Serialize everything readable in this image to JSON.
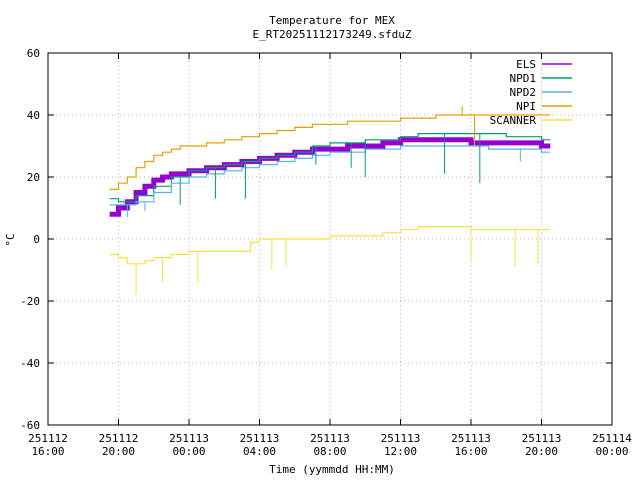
{
  "chart_data": {
    "type": "line",
    "title": "Temperature for MEX",
    "subtitle": "E_RT20251112173249.sfduZ",
    "xlabel": "Time (yymmdd HH:MM)",
    "ylabel": "°C",
    "ylim": [
      -60,
      60
    ],
    "yticks": [
      -60,
      -40,
      -20,
      0,
      20,
      40,
      60
    ],
    "xlim_hours": [
      0,
      32
    ],
    "xticks": [
      {
        "h": 0,
        "date": "251112",
        "time": "16:00"
      },
      {
        "h": 4,
        "date": "251112",
        "time": "20:00"
      },
      {
        "h": 8,
        "date": "251113",
        "time": "00:00"
      },
      {
        "h": 12,
        "date": "251113",
        "time": "04:00"
      },
      {
        "h": 16,
        "date": "251113",
        "time": "08:00"
      },
      {
        "h": 20,
        "date": "251113",
        "time": "12:00"
      },
      {
        "h": 24,
        "date": "251113",
        "time": "16:00"
      },
      {
        "h": 28,
        "date": "251113",
        "time": "20:00"
      },
      {
        "h": 32,
        "date": "251114",
        "time": "00:00"
      }
    ],
    "legend_position": "top-right",
    "series": [
      {
        "name": "ELS",
        "color": "#9400d3",
        "width": 5,
        "x": [
          3.5,
          4.0,
          4.5,
          5.0,
          5.5,
          6.0,
          6.5,
          7.0,
          8.0,
          9.0,
          10.0,
          11.0,
          12.0,
          13.0,
          14.0,
          15.0,
          16.0,
          17.0,
          18.0,
          19.0,
          20.0,
          21.0,
          22.0,
          23.0,
          24.0,
          25.0,
          26.0,
          27.0,
          28.0,
          28.5
        ],
        "y": [
          8,
          10,
          12,
          15,
          17,
          19,
          20,
          21,
          22,
          23,
          24,
          25,
          26,
          27,
          28,
          29,
          29,
          30,
          30,
          31,
          32,
          32,
          32,
          32,
          31,
          31,
          31,
          31,
          30,
          30
        ]
      },
      {
        "name": "NPD1",
        "color": "#009e73",
        "width": 1.2,
        "x": [
          3.5,
          4.0,
          5.0,
          6.0,
          7.0,
          8.0,
          9.0,
          10.0,
          11.0,
          12.0,
          13.0,
          14.0,
          15.0,
          16.0,
          17.0,
          18.0,
          19.0,
          20.0,
          21.0,
          22.0,
          23.0,
          24.0,
          25.0,
          26.0,
          27.0,
          28.0,
          28.5
        ],
        "y": [
          13,
          12,
          14,
          17,
          20,
          22,
          23,
          24,
          25,
          26,
          27,
          28,
          30,
          31,
          31,
          32,
          32,
          33,
          34,
          34,
          34,
          34,
          34,
          33,
          33,
          32,
          32
        ]
      },
      {
        "name": "NPD2",
        "color": "#56b4e9",
        "width": 1.2,
        "x": [
          3.5,
          4.0,
          5.0,
          6.0,
          7.0,
          8.0,
          9.0,
          10.0,
          11.0,
          12.0,
          13.0,
          14.0,
          15.0,
          16.0,
          17.0,
          18.0,
          19.0,
          20.0,
          21.0,
          22.0,
          23.0,
          24.0,
          25.0,
          26.0,
          27.0,
          28.0,
          28.5
        ],
        "y": [
          11,
          11,
          12,
          15,
          18,
          20,
          21,
          22,
          23,
          24,
          25,
          26,
          27,
          28,
          28,
          29,
          29,
          30,
          30,
          30,
          30,
          30,
          29,
          29,
          29,
          28,
          28
        ]
      },
      {
        "name": "NPI",
        "color": "#e69f00",
        "width": 1.2,
        "x": [
          3.5,
          4.0,
          4.5,
          5.0,
          5.5,
          6.0,
          6.5,
          7.0,
          7.5,
          8.0,
          9.0,
          10.0,
          11.0,
          12.0,
          13.0,
          14.0,
          15.0,
          16.0,
          17.0,
          18.0,
          19.0,
          20.0,
          21.0,
          22.0,
          23.0,
          24.0,
          25.0,
          26.0,
          27.0,
          28.0,
          28.5
        ],
        "y": [
          16,
          18,
          20,
          23,
          25,
          27,
          28,
          29,
          30,
          30,
          31,
          32,
          33,
          34,
          35,
          36,
          37,
          37,
          38,
          38,
          38,
          39,
          39,
          40,
          40,
          40,
          40,
          40,
          40,
          40,
          40
        ]
      },
      {
        "name": "SCANNER",
        "color": "#f0e442",
        "width": 1.2,
        "x": [
          3.5,
          4.0,
          4.5,
          5.0,
          5.5,
          6.0,
          7.0,
          8.0,
          9.0,
          10.0,
          11.0,
          11.5,
          12.0,
          13.0,
          14.0,
          15.0,
          16.0,
          17.0,
          18.0,
          19.0,
          20.0,
          21.0,
          22.0,
          23.0,
          24.0,
          25.0,
          26.0,
          27.0,
          28.0,
          28.5
        ],
        "y": [
          -5,
          -6,
          -8,
          -8,
          -7,
          -6,
          -5,
          -4,
          -4,
          -4,
          -4,
          -1,
          0,
          0,
          0,
          0,
          1,
          1,
          1,
          2,
          3,
          4,
          4,
          4,
          3,
          3,
          3,
          3,
          3,
          3
        ]
      }
    ],
    "spikes": [
      {
        "series": "NPD1",
        "x": 7.5,
        "to": 11
      },
      {
        "series": "NPD1",
        "x": 9.5,
        "to": 13
      },
      {
        "series": "NPD1",
        "x": 11.2,
        "to": 13
      },
      {
        "series": "NPD1",
        "x": 15.2,
        "to": 24
      },
      {
        "series": "NPD1",
        "x": 17.2,
        "to": 23
      },
      {
        "series": "NPD1",
        "x": 18.0,
        "to": 20
      },
      {
        "series": "NPD1",
        "x": 22.5,
        "to": 21
      },
      {
        "series": "NPD1",
        "x": 24.5,
        "to": 18
      },
      {
        "series": "NPD2",
        "x": 4.5,
        "to": 7
      },
      {
        "series": "NPD2",
        "x": 5.5,
        "to": 9
      },
      {
        "series": "NPD2",
        "x": 14.5,
        "to": 26
      },
      {
        "series": "NPD2",
        "x": 26.8,
        "to": 25
      },
      {
        "series": "NPI",
        "x": 23.5,
        "to": 43
      },
      {
        "series": "NPI",
        "x": 24.2,
        "to": 30
      },
      {
        "series": "SCANNER",
        "x": 5.0,
        "to": -18
      },
      {
        "series": "SCANNER",
        "x": 6.5,
        "to": -14
      },
      {
        "series": "SCANNER",
        "x": 8.5,
        "to": -14
      },
      {
        "series": "SCANNER",
        "x": 12.7,
        "to": -10
      },
      {
        "series": "SCANNER",
        "x": 13.5,
        "to": -9
      },
      {
        "series": "SCANNER",
        "x": 24.0,
        "to": -7
      },
      {
        "series": "SCANNER",
        "x": 26.5,
        "to": -9
      },
      {
        "series": "SCANNER",
        "x": 27.8,
        "to": -8
      }
    ]
  }
}
